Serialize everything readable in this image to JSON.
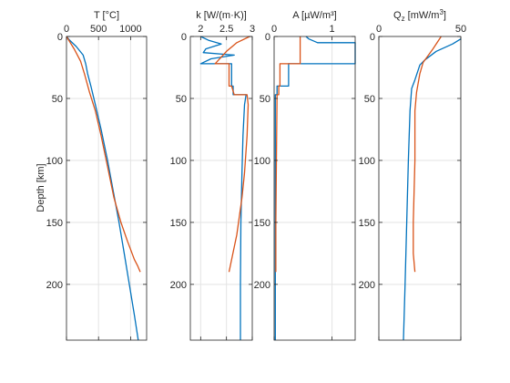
{
  "colors": {
    "series1": "#0072bd",
    "series2": "#d95319",
    "axis": "#262626",
    "grid": "#e3e3e3"
  },
  "chart_data": {
    "type": "line",
    "shared": {
      "ylabel": "Depth [km]",
      "ylim": [
        0,
        245
      ],
      "y_reversed": true,
      "yticks": [
        0,
        50,
        100,
        150,
        200
      ],
      "grid": true,
      "legend": "none"
    },
    "panels": [
      {
        "id": "T",
        "title": "T [°C]",
        "xlim": [
          0,
          1250
        ],
        "xticks": [
          0,
          500,
          1000
        ],
        "xticklabels": [
          "0",
          "500",
          "1000"
        ],
        "series": [
          {
            "color": "series1",
            "points": [
              [
                0,
                0
              ],
              [
                50,
                3
              ],
              [
                150,
                8
              ],
              [
                260,
                15
              ],
              [
                300,
                22
              ],
              [
                330,
                30
              ],
              [
                380,
                40
              ],
              [
                450,
                55
              ],
              [
                540,
                75
              ],
              [
                640,
                100
              ],
              [
                730,
                125
              ],
              [
                820,
                150
              ],
              [
                900,
                175
              ],
              [
                980,
                200
              ],
              [
                1060,
                225
              ],
              [
                1120,
                245
              ]
            ]
          },
          {
            "color": "series2",
            "points": [
              [
                0,
                0
              ],
              [
                120,
                10
              ],
              [
                220,
                20
              ],
              [
                280,
                30
              ],
              [
                360,
                45
              ],
              [
                450,
                60
              ],
              [
                540,
                80
              ],
              [
                640,
                105
              ],
              [
                740,
                130
              ],
              [
                850,
                150
              ],
              [
                950,
                165
              ],
              [
                1060,
                180
              ],
              [
                1110,
                185
              ],
              [
                1150,
                190
              ]
            ]
          }
        ]
      },
      {
        "id": "k",
        "title": "k [W/(m·K)]",
        "xlim": [
          1.8,
          3
        ],
        "xticks": [
          2,
          2.5,
          3
        ],
        "xticklabels": [
          "2",
          "2.5",
          "3"
        ],
        "series": [
          {
            "color": "series1",
            "points": [
              [
                2.0,
                0
              ],
              [
                2.15,
                3
              ],
              [
                2.4,
                6
              ],
              [
                2.1,
                10
              ],
              [
                2.05,
                13
              ],
              [
                2.65,
                15
              ],
              [
                2.2,
                18
              ],
              [
                2.0,
                22
              ],
              [
                2.6,
                22
              ],
              [
                2.6,
                40
              ],
              [
                2.63,
                40
              ],
              [
                2.63,
                47
              ],
              [
                2.88,
                47
              ],
              [
                2.85,
                55
              ],
              [
                2.82,
                80
              ],
              [
                2.8,
                110
              ],
              [
                2.78,
                150
              ],
              [
                2.77,
                200
              ],
              [
                2.77,
                245
              ]
            ]
          },
          {
            "color": "series2",
            "points": [
              [
                2.95,
                0
              ],
              [
                2.7,
                5
              ],
              [
                2.5,
                12
              ],
              [
                2.28,
                22
              ],
              [
                2.55,
                22
              ],
              [
                2.55,
                40
              ],
              [
                2.6,
                40
              ],
              [
                2.65,
                47
              ],
              [
                2.9,
                47
              ],
              [
                2.92,
                55
              ],
              [
                2.9,
                80
              ],
              [
                2.85,
                110
              ],
              [
                2.8,
                130
              ],
              [
                2.7,
                160
              ],
              [
                2.6,
                180
              ],
              [
                2.55,
                190
              ]
            ]
          }
        ]
      },
      {
        "id": "A",
        "title": "A [µW/m³]",
        "xlim": [
          0,
          1.4
        ],
        "xticks": [
          0,
          1
        ],
        "xticklabels": [
          "0",
          "1"
        ],
        "series": [
          {
            "color": "series1",
            "points": [
              [
                0.55,
                0
              ],
              [
                0.6,
                2
              ],
              [
                0.75,
                5
              ],
              [
                1.4,
                5
              ],
              [
                1.4,
                22
              ],
              [
                0.25,
                22
              ],
              [
                0.25,
                40
              ],
              [
                0.05,
                40
              ],
              [
                0.05,
                47
              ],
              [
                0.02,
                47
              ],
              [
                0.02,
                245
              ]
            ]
          },
          {
            "color": "series2",
            "points": [
              [
                0.45,
                0
              ],
              [
                0.45,
                22
              ],
              [
                0.1,
                22
              ],
              [
                0.1,
                40
              ],
              [
                0.08,
                40
              ],
              [
                0.08,
                47
              ],
              [
                0.05,
                47
              ],
              [
                0.04,
                100
              ],
              [
                0.03,
                150
              ],
              [
                0.03,
                190
              ]
            ]
          }
        ]
      },
      {
        "id": "Qz",
        "title": "Qz [mW/m³]",
        "title_main": "Q",
        "title_sub": "z",
        "title_unit": "[mW/m",
        "title_sup": "3",
        "title_close": "]",
        "xlim": [
          0,
          50
        ],
        "xticks": [
          0,
          50
        ],
        "xticklabels": [
          "0",
          "50"
        ],
        "series": [
          {
            "color": "series1",
            "points": [
              [
                50,
                2
              ],
              [
                45,
                6
              ],
              [
                35,
                12
              ],
              [
                28,
                19
              ],
              [
                25,
                23
              ],
              [
                22,
                35
              ],
              [
                20,
                42
              ],
              [
                19,
                60
              ],
              [
                18,
                100
              ],
              [
                17,
                150
              ],
              [
                16,
                200
              ],
              [
                15,
                245
              ]
            ]
          },
          {
            "color": "series2",
            "points": [
              [
                38,
                0
              ],
              [
                33,
                10
              ],
              [
                27,
                21
              ],
              [
                25,
                30
              ],
              [
                23,
                45
              ],
              [
                22,
                60
              ],
              [
                22,
                100
              ],
              [
                21,
                150
              ],
              [
                21,
                175
              ],
              [
                22,
                190
              ]
            ]
          }
        ]
      }
    ]
  }
}
